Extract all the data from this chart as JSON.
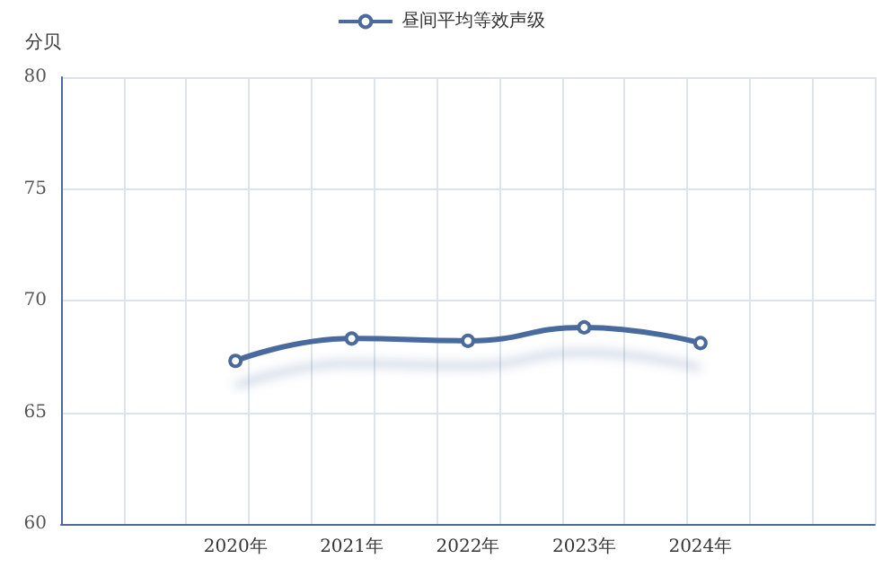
{
  "chart_data": {
    "type": "line",
    "ylabel": "分贝",
    "categories": [
      null,
      "2020年",
      "2021年",
      "2022年",
      "2023年",
      "2024年",
      null
    ],
    "series": [
      {
        "name": "昼间平均等效声级",
        "color": "#4a6a9e",
        "values": [
          null,
          67.3,
          68.3,
          68.2,
          68.8,
          68.1,
          null
        ]
      }
    ],
    "ylim": [
      60,
      80
    ],
    "yticks": [
      60,
      65,
      70,
      75,
      80
    ],
    "grid": true,
    "legend": "top",
    "marker": "circle",
    "line_style": "solid"
  }
}
